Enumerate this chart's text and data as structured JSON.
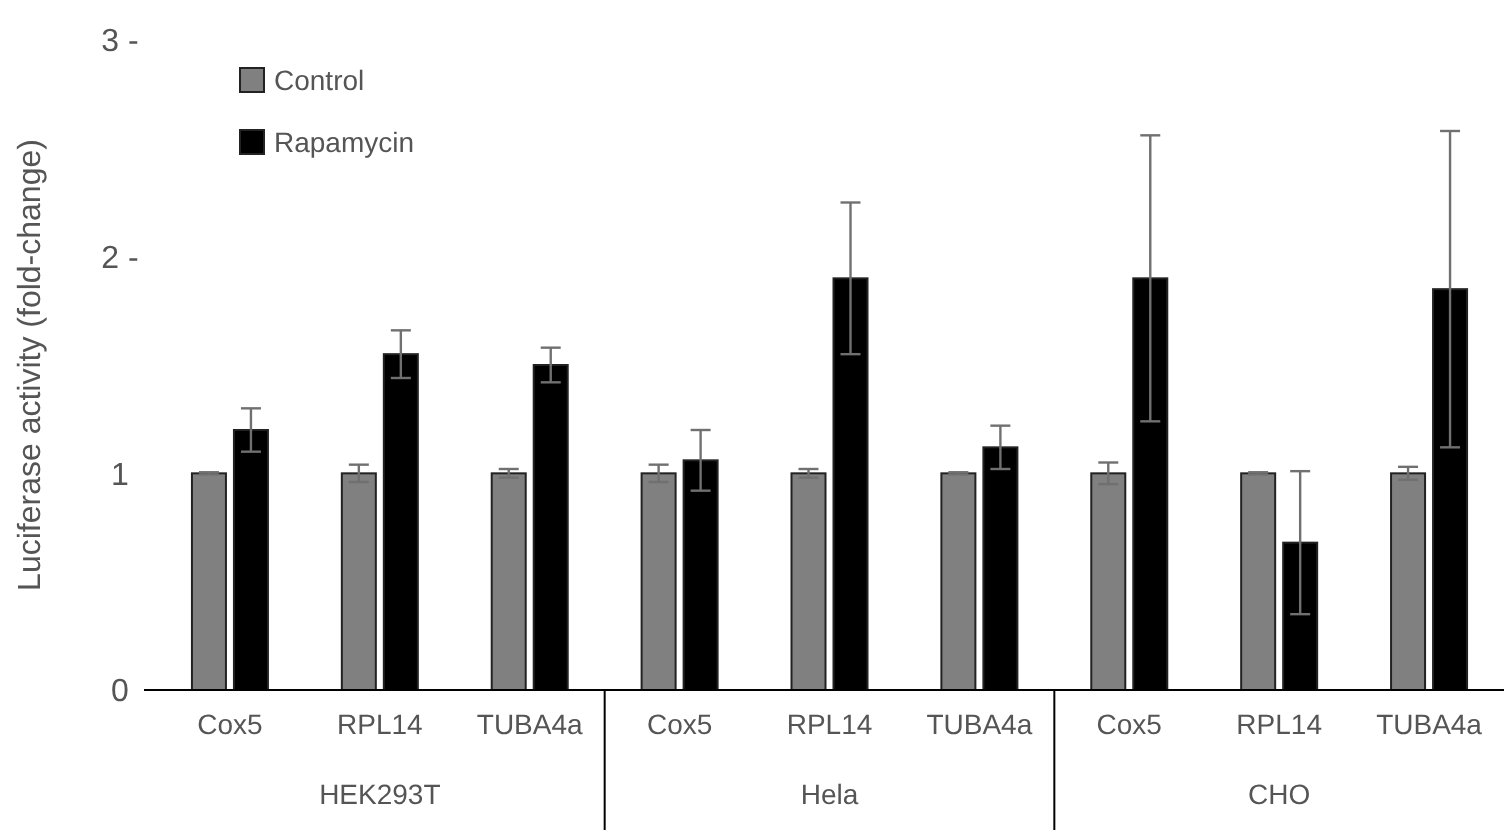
{
  "chart_data": {
    "type": "bar",
    "ylabel": "Luciferase activity (fold-change)",
    "categories": [
      "Cox5",
      "RPL14",
      "TUBA4a",
      "Cox5",
      "RPL14",
      "TUBA4a",
      "Cox5",
      "RPL14",
      "TUBA4a"
    ],
    "annotations": [
      "HEK293T",
      "Hela",
      "CHO"
    ],
    "series": [
      {
        "name": "Control",
        "color": "#808080",
        "values": [
          1,
          1,
          1,
          1,
          1,
          1,
          1,
          1,
          1
        ],
        "errors": [
          0.005,
          0.04,
          0.02,
          0.04,
          0.02,
          0.005,
          0.05,
          0.005,
          0.03
        ]
      },
      {
        "name": "Rapamycin",
        "color": "#000000",
        "values": [
          1.2,
          1.55,
          1.5,
          1.06,
          1.9,
          1.12,
          1.9,
          0.68,
          1.85
        ],
        "errors": [
          0.1,
          0.11,
          0.08,
          0.14,
          0.35,
          0.1,
          0.66,
          0.33,
          0.73
        ]
      }
    ],
    "ylim": [
      0,
      3
    ],
    "yticks": [
      {
        "value": 0,
        "label": "0"
      },
      {
        "value": 1,
        "label": "1"
      },
      {
        "value": 2,
        "label": "2 -"
      },
      {
        "value": 3,
        "label": "3 -"
      }
    ],
    "legend": "top left",
    "grid": false
  }
}
